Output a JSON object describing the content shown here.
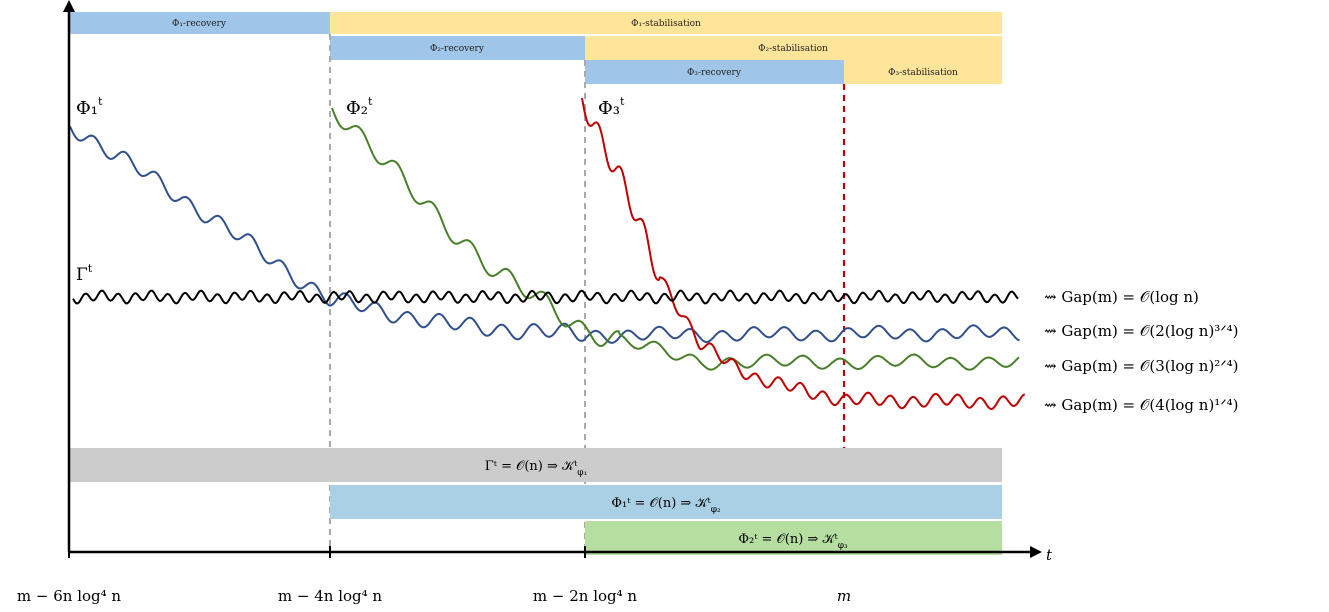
{
  "phase_bars": [
    {
      "label": "Φ₁-recovery",
      "color": "#9fc5e8"
    },
    {
      "label": "Φ₁-stabilisation",
      "color": "#ffe599"
    },
    {
      "label": "Φ₂-recovery",
      "color": "#9fc5e8"
    },
    {
      "label": "Φ₂-stabilisation",
      "color": "#ffe599"
    },
    {
      "label": "Φ₃-recovery",
      "color": "#9fc5e8"
    },
    {
      "label": "Φ₃-stabilisation",
      "color": "#ffe599"
    }
  ],
  "curves": [
    {
      "name": "Φ₁",
      "sup": "t",
      "color": "#2f4f8f"
    },
    {
      "name": "Φ₂",
      "sup": "t",
      "color": "#4a7f2a"
    },
    {
      "name": "Φ₃",
      "sup": "t",
      "color": "#c00000"
    },
    {
      "name": "Γ",
      "sup": "t",
      "color": "#000000"
    }
  ],
  "outcomes": [
    "⇝ Gap(m) = 𝒪(log n)",
    "⇝ Gap(m) = 𝒪(2(log n)³ᐟ⁴)",
    "⇝ Gap(m) = 𝒪(3(log n)²ᐟ⁴)",
    "⇝ Gap(m) = 𝒪(4(log n)¹ᐟ⁴)"
  ],
  "implication_bars": [
    {
      "text": "Γᵗ = 𝒪(n)    ⇒    𝒦ᵗ",
      "sub": "φ₁",
      "color": "#cccccc"
    },
    {
      "text": "Φ₁ᵗ = 𝒪(n)    ⇒    𝒦ᵗ",
      "sub": "φ₂",
      "color": "#a9d0e4"
    },
    {
      "text": "Φ₂ᵗ = 𝒪(n)    ⇒    𝒦ᵗ",
      "sub": "φ₃",
      "color": "#b6dea0"
    }
  ],
  "x_ticks": [
    "m − 6n log⁴ n",
    "m − 4n log⁴ n",
    "m − 2n log⁴ n",
    "m"
  ],
  "x_tick_m_color": "#c00000",
  "axis_label": "t"
}
